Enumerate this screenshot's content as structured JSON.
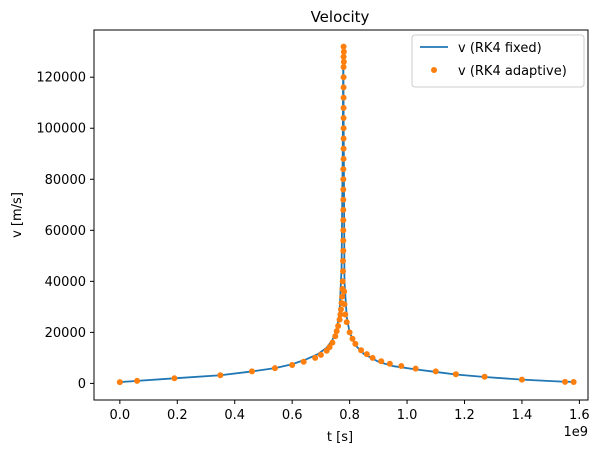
{
  "chart_data": {
    "type": "line",
    "title": "Velocity",
    "xlabel": "t [s]",
    "ylabel": "v [m/s]",
    "x_offset_label": "1e9",
    "xlim": [
      -0.09,
      1.63
    ],
    "ylim": [
      -6500,
      138500
    ],
    "x_ticks": [
      0.0,
      0.2,
      0.4,
      0.6,
      0.8,
      1.0,
      1.2,
      1.4,
      1.6
    ],
    "x_tick_labels": [
      "0.0",
      "0.2",
      "0.4",
      "0.6",
      "0.8",
      "1.0",
      "1.2",
      "1.4",
      "1.6"
    ],
    "y_ticks": [
      0,
      20000,
      40000,
      60000,
      80000,
      100000,
      120000
    ],
    "y_tick_labels": [
      "0",
      "20000",
      "40000",
      "60000",
      "80000",
      "100000",
      "120000"
    ],
    "grid": false,
    "legend_position": "top-right",
    "series": [
      {
        "name": "v (RK4 fixed)",
        "style": "line",
        "color": "#1f77b4",
        "x": [
          0.0,
          0.06,
          0.19,
          0.35,
          0.46,
          0.54,
          0.6,
          0.65,
          0.69,
          0.72,
          0.74,
          0.755,
          0.765,
          0.772,
          0.776,
          0.778,
          0.782,
          0.79,
          0.8,
          0.82,
          0.85,
          0.9,
          0.95,
          1.03,
          1.1,
          1.17,
          1.27,
          1.4,
          1.54,
          1.58
        ],
        "y": [
          500,
          1000,
          2000,
          3200,
          4700,
          6000,
          7500,
          9500,
          11500,
          14000,
          17000,
          21000,
          28000,
          45000,
          90000,
          132000,
          40000,
          26000,
          20000,
          15000,
          11500,
          8500,
          6800,
          5500,
          4500,
          3500,
          2500,
          1500,
          700,
          600
        ]
      },
      {
        "name": "v (RK4 adaptive)",
        "style": "scatter",
        "color": "#ff7f0e",
        "x": [
          0.0,
          0.06,
          0.19,
          0.35,
          0.46,
          0.54,
          0.6,
          0.64,
          0.68,
          0.7,
          0.72,
          0.73,
          0.74,
          0.75,
          0.755,
          0.76,
          0.765,
          0.768,
          0.77,
          0.772,
          0.774,
          0.775,
          0.776,
          0.777,
          0.777,
          0.778,
          0.778,
          0.778,
          0.778,
          0.778,
          0.778,
          0.778,
          0.778,
          0.778,
          0.779,
          0.779,
          0.779,
          0.779,
          0.779,
          0.779,
          0.779,
          0.779,
          0.779,
          0.779,
          0.779,
          0.779,
          0.78,
          0.78,
          0.781,
          0.782,
          0.785,
          0.79,
          0.8,
          0.81,
          0.82,
          0.84,
          0.86,
          0.88,
          0.91,
          0.94,
          0.98,
          1.03,
          1.1,
          1.17,
          1.27,
          1.4,
          1.55,
          1.58
        ],
        "y": [
          500,
          1000,
          2000,
          3200,
          4700,
          6000,
          7200,
          8500,
          10000,
          11200,
          12800,
          14200,
          16000,
          18500,
          20500,
          22500,
          25000,
          27000,
          29000,
          31500,
          34000,
          37000,
          40000,
          44000,
          48000,
          52000,
          56000,
          60000,
          64000,
          68000,
          72000,
          76000,
          80000,
          84000,
          88000,
          92000,
          96000,
          100000,
          104000,
          108000,
          112000,
          116000,
          120000,
          124000,
          128000,
          132000,
          130000,
          126000,
          36000,
          31000,
          27000,
          24000,
          20000,
          17500,
          15500,
          13000,
          11500,
          10000,
          8700,
          7700,
          6800,
          5800,
          4700,
          3600,
          2600,
          1500,
          600,
          550
        ]
      }
    ]
  }
}
